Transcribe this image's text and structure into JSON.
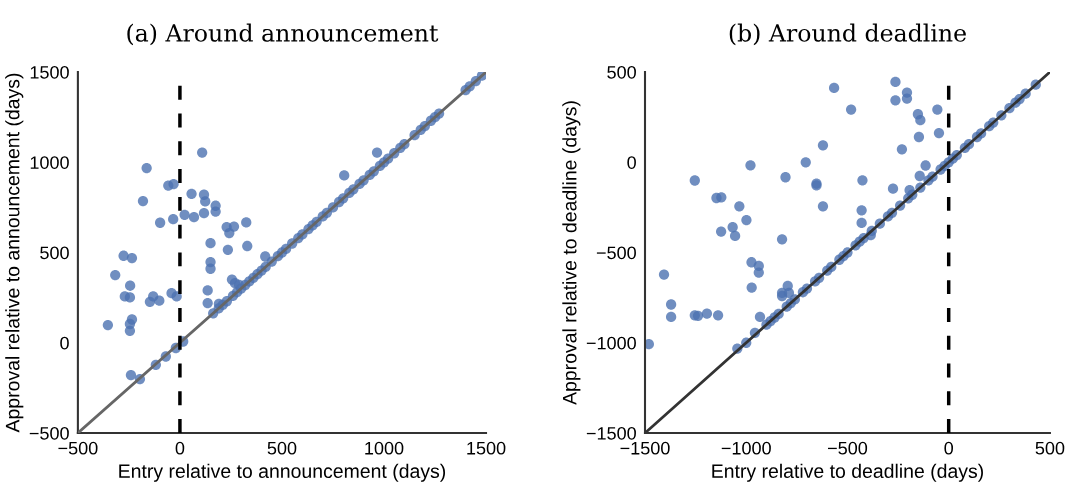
{
  "chart_data": [
    {
      "type": "scatter",
      "title": "(a) Around announcement",
      "xlabel": "Entry relative to announcement (days)",
      "ylabel": "Approval relative to announcement (days)",
      "xlim": [
        -500,
        1500
      ],
      "ylim": [
        -500,
        1500
      ],
      "xticks": [
        -500,
        0,
        500,
        1000,
        1500
      ],
      "yticks": [
        -500,
        0,
        500,
        1000,
        1500
      ],
      "grid": false,
      "marker": "circle",
      "ref_lines": [
        {
          "axis": "x",
          "value": 0,
          "color": "#000000",
          "line_style": "dashed"
        }
      ],
      "series": [
        {
          "color": "#4c72b0",
          "x": [
            109,
            -163,
            -57,
            -31,
            -181,
            57,
            118,
            124,
            175,
            175,
            118,
            23,
            69,
            -33,
            -97,
            229,
            265,
            242,
            325,
            330,
            150,
            235,
            418,
            -276,
            -235,
            -317,
            -244,
            150,
            150,
            255,
            270,
            290,
            -270,
            -245,
            -147,
            -131,
            -101,
            -41,
            -16,
            136,
            136,
            191,
            -353,
            -235,
            -245,
            -245,
            -240,
            805,
            966,
            -196,
            -118,
            -69,
            -20,
            16,
            163,
            190,
            210,
            230,
            260,
            280,
            300,
            320,
            340,
            360,
            380,
            400,
            420,
            450,
            480,
            500,
            520,
            550,
            580,
            600,
            630,
            650,
            670,
            700,
            720,
            750,
            780,
            800,
            830,
            850,
            880,
            900,
            930,
            950,
            980,
            1000,
            1020,
            1050,
            1080,
            1100,
            1150,
            1180,
            1200,
            1230,
            1250,
            1270,
            1400,
            1420,
            1450,
            1480
          ],
          "values": [
            1054,
            968,
            871,
            879,
            785,
            825,
            820,
            783,
            759,
            727,
            718,
            709,
            696,
            685,
            665,
            641,
            644,
            608,
            667,
            536,
            552,
            515,
            478,
            482,
            469,
            375,
            316,
            447,
            410,
            350,
            330,
            320,
            257,
            251,
            227,
            257,
            233,
            275,
            257,
            290,
            220,
            216,
            98,
            129,
            104,
            66,
            -179,
            927,
            1054,
            -201,
            -122,
            -76,
            -29,
            7,
            163,
            190,
            210,
            230,
            260,
            280,
            300,
            320,
            340,
            360,
            380,
            400,
            420,
            450,
            480,
            500,
            520,
            550,
            580,
            600,
            630,
            650,
            670,
            700,
            720,
            750,
            780,
            800,
            830,
            850,
            880,
            900,
            930,
            950,
            980,
            1000,
            1020,
            1050,
            1080,
            1100,
            1150,
            1180,
            1200,
            1230,
            1250,
            1270,
            1400,
            1420,
            1450,
            1480
          ]
        },
        {
          "type": "line",
          "color": "#666666",
          "line_style": "solid",
          "marker": "none",
          "x": [
            -500,
            1500
          ],
          "values": [
            -500,
            1500
          ]
        }
      ]
    },
    {
      "type": "scatter",
      "title": "(b) Around deadline",
      "xlabel": "Entry relative to deadline (days)",
      "ylabel": "Approval relative to deadline (days)",
      "xlim": [
        -1500,
        500
      ],
      "ylim": [
        -1500,
        500
      ],
      "xticks": [
        -1500,
        -1000,
        -500,
        0,
        500
      ],
      "yticks": [
        -1500,
        -1000,
        -500,
        0,
        500
      ],
      "grid": false,
      "marker": "circle",
      "ref_lines": [
        {
          "axis": "x",
          "value": 0,
          "color": "#000000",
          "line_style": "dashed"
        }
      ],
      "series": [
        {
          "color": "#4c72b0",
          "x": [
            -566,
            -482,
            -621,
            -706,
            -979,
            -1254,
            -806,
            -653,
            -653,
            -1147,
            -1123,
            -621,
            -1034,
            -999,
            -1067,
            -1055,
            -1124,
            -823,
            -974,
            -938,
            -938,
            -1406,
            -973,
            -795,
            -823,
            -823,
            -789,
            -1371,
            -1371,
            -1254,
            -1238,
            -1194,
            -1139,
            -932,
            -1481,
            -263,
            -263,
            -206,
            -206,
            -56,
            -152,
            -140,
            -48,
            -147,
            -231,
            -114,
            -143,
            -426,
            -275,
            -193,
            -430,
            -430,
            -385,
            -1044,
            -957,
            -1000,
            -900,
            -880,
            -860,
            -840,
            -800,
            -780,
            -760,
            -720,
            -700,
            -660,
            -640,
            -600,
            -580,
            -540,
            -520,
            -500,
            -460,
            -440,
            -420,
            -380,
            -340,
            -300,
            -280,
            -240,
            -200,
            -180,
            -140,
            -100,
            -80,
            -40,
            -20,
            0,
            20,
            40,
            80,
            100,
            140,
            160,
            200,
            220,
            260,
            300,
            330,
            350,
            380,
            430
          ],
          "values": [
            412,
            292,
            94,
            0,
            -17,
            -101,
            -83,
            -118,
            -128,
            -198,
            -194,
            -244,
            -244,
            -320,
            -360,
            -408,
            -384,
            -427,
            -554,
            -574,
            -611,
            -622,
            -694,
            -685,
            -724,
            -741,
            -724,
            -788,
            -857,
            -848,
            -851,
            -838,
            -848,
            -857,
            -1008,
            445,
            343,
            386,
            353,
            292,
            266,
            233,
            162,
            140,
            72,
            -18,
            -76,
            -100,
            -146,
            -155,
            -266,
            -336,
            -404,
            -1032,
            -945,
            -1000,
            -900,
            -880,
            -860,
            -840,
            -800,
            -780,
            -760,
            -720,
            -700,
            -660,
            -640,
            -600,
            -580,
            -540,
            -520,
            -500,
            -460,
            -440,
            -420,
            -380,
            -340,
            -300,
            -280,
            -240,
            -200,
            -180,
            -140,
            -100,
            -80,
            -40,
            -20,
            0,
            20,
            40,
            80,
            100,
            140,
            160,
            200,
            220,
            260,
            300,
            330,
            350,
            380,
            430
          ]
        },
        {
          "type": "line",
          "color": "#333333",
          "line_style": "solid",
          "marker": "none",
          "x": [
            -1500,
            500
          ],
          "values": [
            -1500,
            500
          ]
        }
      ]
    }
  ]
}
